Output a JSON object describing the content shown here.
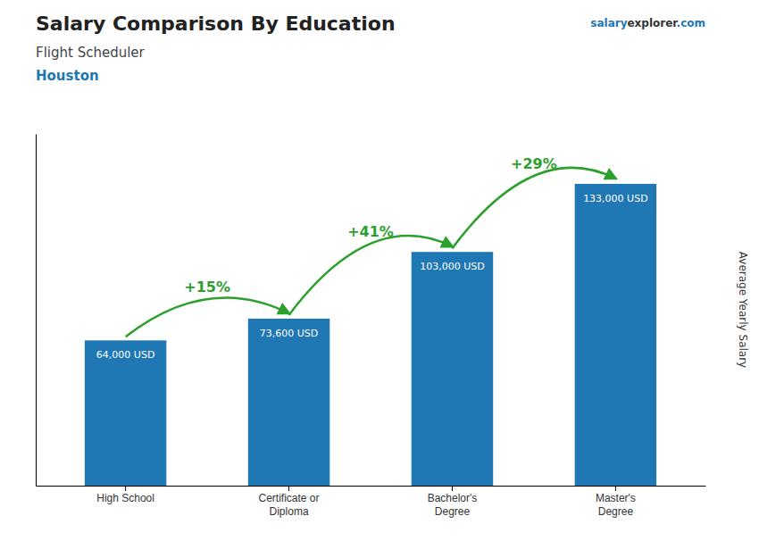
{
  "chart_data": {
    "type": "bar",
    "title": "Salary Comparison By Education",
    "subtitle": "Flight Scheduler",
    "location": "Houston",
    "brand": [
      "salary",
      "explorer",
      ".com"
    ],
    "y_label": "Average Yearly Salary",
    "categories": [
      "High School",
      "Certificate or\nDiploma",
      "Bachelor's\nDegree",
      "Master's\nDegree"
    ],
    "values": [
      64000,
      73600,
      103000,
      133000
    ],
    "value_labels": [
      "64,000 USD",
      "73,600 USD",
      "103,000 USD",
      "133,000 USD"
    ],
    "data_labels": true,
    "annotations": [
      "+15%",
      "+41%",
      "+29%"
    ],
    "ylim": [
      0,
      155000
    ],
    "tick_labels": "x",
    "grid": false
  }
}
